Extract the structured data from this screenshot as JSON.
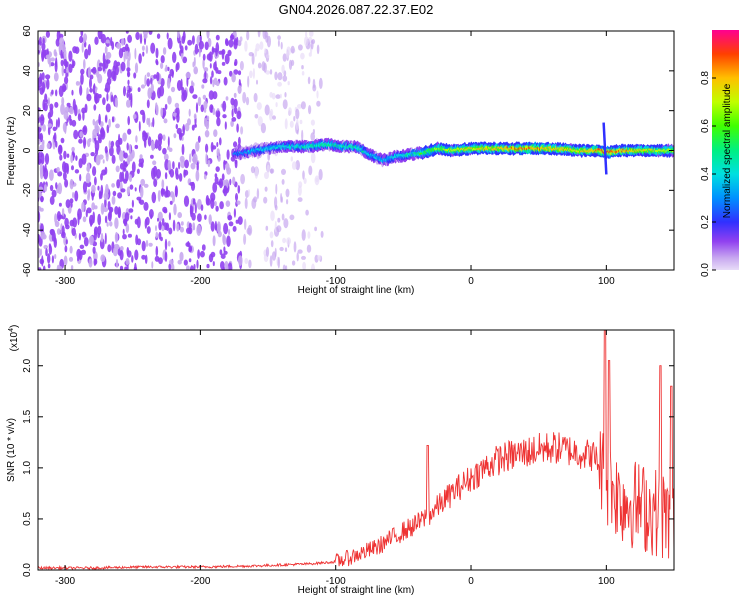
{
  "title": "GN04.2026.087.22.37.E02",
  "chart_data": [
    {
      "type": "heatmap",
      "xlabel": "Height of straight line (km)",
      "ylabel": "Frequency (Hz)",
      "xlim": [
        -320,
        150
      ],
      "ylim": [
        -60,
        60
      ],
      "xticks": [
        -300,
        -200,
        -100,
        0,
        100
      ],
      "xtick_labels": [
        "-300",
        "-200",
        "-100",
        "0",
        "100"
      ],
      "yticks": [
        -60,
        -40,
        -20,
        0,
        20,
        40,
        60
      ],
      "ytick_labels": [
        "-60",
        "-40",
        "-20",
        "0",
        "20",
        "40",
        "60"
      ],
      "colorbar": {
        "label": "Normalized spectral amplitude",
        "range": [
          0,
          1
        ],
        "ticks": [
          0,
          0.2,
          0.4,
          0.6,
          0.8
        ],
        "tick_labels": [
          "0.0",
          "0.2",
          "0.4",
          "0.6",
          "0.8"
        ]
      },
      "ridge": {
        "x": [
          -175,
          -160,
          -140,
          -120,
          -105,
          -95,
          -85,
          -75,
          -65,
          -55,
          -45,
          -35,
          -25,
          -15,
          0,
          20,
          40,
          60,
          80,
          95,
          100,
          110,
          130,
          150
        ],
        "y": [
          -2,
          0,
          2,
          2,
          3,
          2,
          2,
          -2,
          -5,
          -3,
          -2,
          -1,
          1,
          0,
          1,
          1,
          1,
          1,
          0,
          0,
          -1,
          0,
          0,
          0
        ],
        "amplitude": [
          0.35,
          0.4,
          0.45,
          0.5,
          0.55,
          0.5,
          0.5,
          0.45,
          0.4,
          0.45,
          0.5,
          0.6,
          0.7,
          0.75,
          0.8,
          0.85,
          0.9,
          0.85,
          0.8,
          0.9,
          0.95,
          0.9,
          0.8,
          0.7
        ]
      },
      "noise_region_x": [
        -320,
        -110
      ]
    },
    {
      "type": "line",
      "xlabel": "Height of straight line (km)",
      "ylabel": "SNR (10 * v/v)",
      "y_multiplier_label": "(x10",
      "y_multiplier_exp": "4",
      "y_multiplier_close": ")",
      "xlim": [
        -320,
        150
      ],
      "ylim": [
        0,
        2.35
      ],
      "xticks": [
        -300,
        -200,
        -100,
        0,
        100
      ],
      "xtick_labels": [
        "-300",
        "-200",
        "-100",
        "0",
        "100"
      ],
      "yticks": [
        0,
        0.5,
        1.0,
        1.5,
        2.0
      ],
      "ytick_labels": [
        "0.0",
        "0.5",
        "1.0",
        "1.5",
        "2.0"
      ],
      "series": [
        {
          "name": "SNR",
          "color": "#ee3333",
          "x": [
            -320,
            -280,
            -240,
            -200,
            -160,
            -140,
            -120,
            -100,
            -90,
            -80,
            -70,
            -60,
            -50,
            -40,
            -30,
            -20,
            -10,
            0,
            10,
            20,
            30,
            40,
            50,
            60,
            70,
            80,
            90,
            95,
            100,
            105,
            110,
            120,
            130,
            140,
            150
          ],
          "y": [
            0.02,
            0.02,
            0.03,
            0.03,
            0.04,
            0.05,
            0.06,
            0.08,
            0.12,
            0.17,
            0.22,
            0.3,
            0.38,
            0.45,
            0.55,
            0.68,
            0.8,
            0.9,
            1.0,
            1.08,
            1.12,
            1.15,
            1.18,
            1.2,
            1.18,
            1.15,
            1.12,
            1.05,
            0.85,
            0.8,
            0.7,
            0.65,
            0.6,
            0.55,
            0.5
          ],
          "spikes": [
            {
              "x": -32,
              "y": 1.22
            },
            {
              "x": 99,
              "y": 2.35
            },
            {
              "x": 102,
              "y": 2.05
            },
            {
              "x": 140,
              "y": 2.0
            },
            {
              "x": 148,
              "y": 1.8
            }
          ]
        }
      ]
    }
  ]
}
